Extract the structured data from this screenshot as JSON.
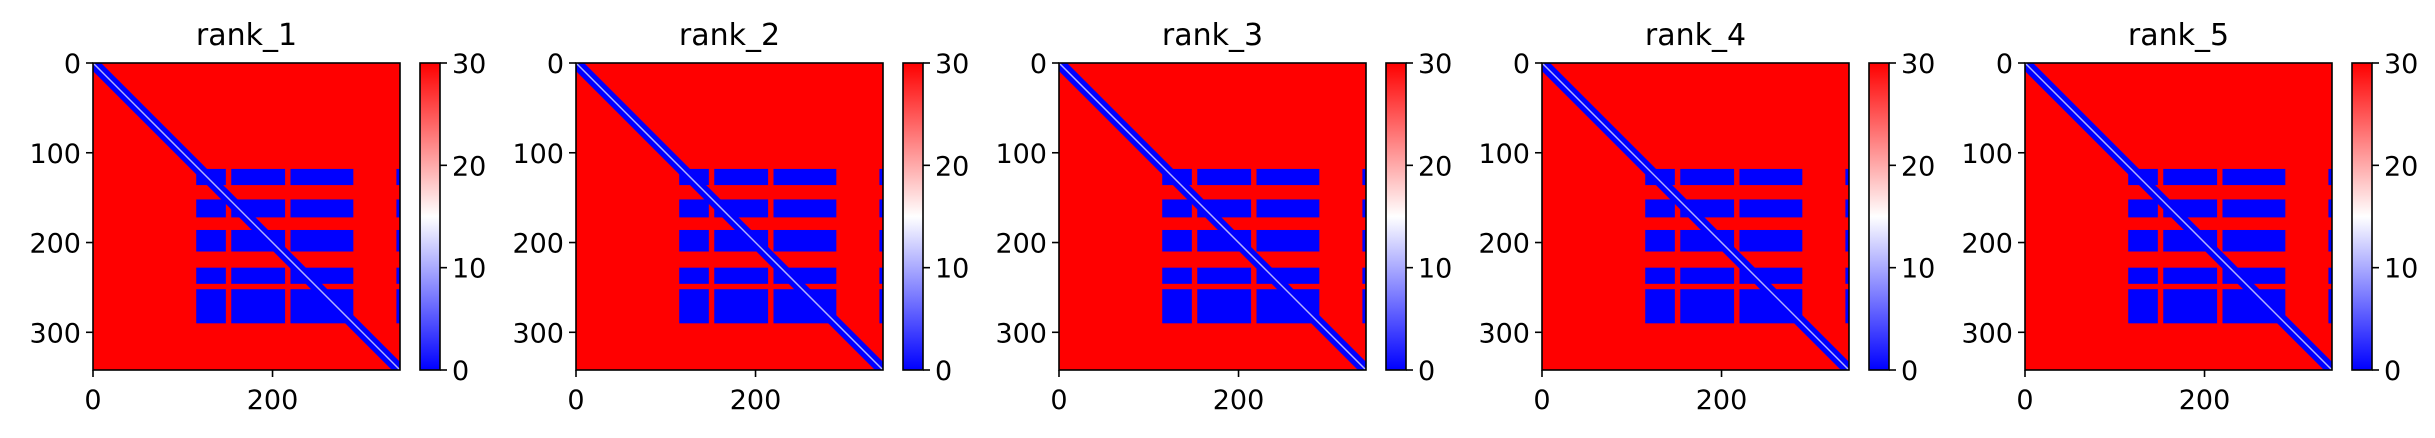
{
  "chart_data": [
    {
      "type": "heatmap",
      "title": "rank_1",
      "x_ticks": [
        0,
        200
      ],
      "y_ticks": [
        0,
        100,
        200,
        300
      ],
      "xlim": [
        0,
        342
      ],
      "ylim": [
        342,
        0
      ],
      "colorbar": {
        "ticks": [
          0,
          10,
          20,
          30
        ],
        "range": [
          0,
          30
        ],
        "colormap": "bwr"
      },
      "pattern": {
        "diagonal_value": 0,
        "background_value": 30,
        "blocks_value": 0,
        "rows": [
          [
            118,
            136
          ],
          [
            152,
            172
          ],
          [
            186,
            210
          ],
          [
            228,
            246
          ],
          [
            252,
            290
          ]
        ],
        "cols": [
          [
            115,
            148
          ],
          [
            154,
            214
          ],
          [
            220,
            290
          ],
          [
            338,
            342
          ]
        ]
      }
    },
    {
      "type": "heatmap",
      "title": "rank_2",
      "x_ticks": [
        0,
        200
      ],
      "y_ticks": [
        0,
        100,
        200,
        300
      ],
      "xlim": [
        0,
        342
      ],
      "ylim": [
        342,
        0
      ],
      "colorbar": {
        "ticks": [
          0,
          10,
          20,
          30
        ],
        "range": [
          0,
          30
        ],
        "colormap": "bwr"
      },
      "pattern": {
        "diagonal_value": 0,
        "background_value": 30,
        "blocks_value": 0,
        "rows": [
          [
            118,
            136
          ],
          [
            152,
            172
          ],
          [
            186,
            210
          ],
          [
            228,
            246
          ],
          [
            252,
            290
          ]
        ],
        "cols": [
          [
            115,
            148
          ],
          [
            154,
            214
          ],
          [
            220,
            290
          ],
          [
            338,
            342
          ]
        ]
      }
    },
    {
      "type": "heatmap",
      "title": "rank_3",
      "x_ticks": [
        0,
        200
      ],
      "y_ticks": [
        0,
        100,
        200,
        300
      ],
      "xlim": [
        0,
        342
      ],
      "ylim": [
        342,
        0
      ],
      "colorbar": {
        "ticks": [
          0,
          10,
          20,
          30
        ],
        "range": [
          0,
          30
        ],
        "colormap": "bwr"
      },
      "pattern": {
        "diagonal_value": 0,
        "background_value": 30,
        "blocks_value": 0,
        "rows": [
          [
            118,
            136
          ],
          [
            152,
            172
          ],
          [
            186,
            210
          ],
          [
            228,
            246
          ],
          [
            252,
            290
          ]
        ],
        "cols": [
          [
            115,
            148
          ],
          [
            154,
            214
          ],
          [
            220,
            290
          ],
          [
            338,
            342
          ]
        ]
      }
    },
    {
      "type": "heatmap",
      "title": "rank_4",
      "x_ticks": [
        0,
        200
      ],
      "y_ticks": [
        0,
        100,
        200,
        300
      ],
      "xlim": [
        0,
        342
      ],
      "ylim": [
        342,
        0
      ],
      "colorbar": {
        "ticks": [
          0,
          10,
          20,
          30
        ],
        "range": [
          0,
          30
        ],
        "colormap": "bwr"
      },
      "pattern": {
        "diagonal_value": 0,
        "background_value": 30,
        "blocks_value": 0,
        "rows": [
          [
            118,
            136
          ],
          [
            152,
            172
          ],
          [
            186,
            210
          ],
          [
            228,
            246
          ],
          [
            252,
            290
          ]
        ],
        "cols": [
          [
            115,
            148
          ],
          [
            154,
            214
          ],
          [
            220,
            290
          ],
          [
            338,
            342
          ]
        ]
      }
    },
    {
      "type": "heatmap",
      "title": "rank_5",
      "x_ticks": [
        0,
        200
      ],
      "y_ticks": [
        0,
        100,
        200,
        300
      ],
      "xlim": [
        0,
        342
      ],
      "ylim": [
        342,
        0
      ],
      "colorbar": {
        "ticks": [
          0,
          10,
          20,
          30
        ],
        "range": [
          0,
          30
        ],
        "colormap": "bwr"
      },
      "pattern": {
        "diagonal_value": 0,
        "background_value": 30,
        "blocks_value": 0,
        "rows": [
          [
            118,
            136
          ],
          [
            152,
            172
          ],
          [
            186,
            210
          ],
          [
            228,
            246
          ],
          [
            252,
            290
          ]
        ],
        "cols": [
          [
            115,
            148
          ],
          [
            154,
            214
          ],
          [
            220,
            290
          ],
          [
            338,
            342
          ]
        ]
      }
    }
  ]
}
